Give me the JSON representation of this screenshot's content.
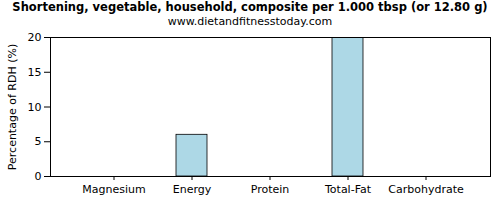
{
  "chart_data": {
    "type": "bar",
    "title": "Shortening, vegetable, household, composite per 1.000 tbsp (or 12.80 g)",
    "subtitle": "www.dietandfitnesstoday.com",
    "y_label": "Percentage of RDH (%)",
    "categories": [
      "Magnesium",
      "Energy",
      "Protein",
      "Total-Fat",
      "Carbohydrate"
    ],
    "values": [
      0,
      6,
      0,
      20,
      0
    ],
    "color": "#add8e6",
    "ylim": [
      0,
      20
    ],
    "yticks": [
      0,
      5,
      10,
      15,
      20
    ],
    "grid": false
  }
}
